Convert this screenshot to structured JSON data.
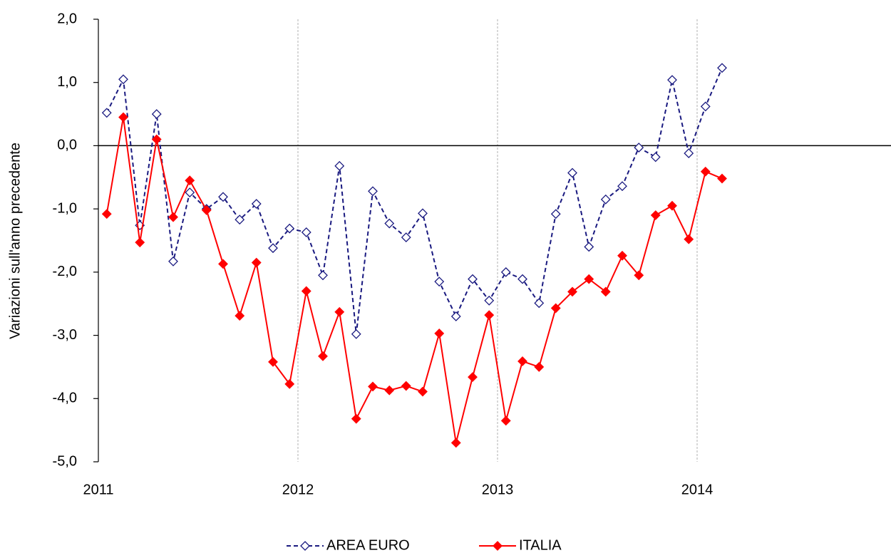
{
  "chart_data": {
    "type": "line",
    "y_label": "Variazioni sull'anno precedente",
    "x": [
      2011.042,
      2011.125,
      2011.208,
      2011.292,
      2011.375,
      2011.458,
      2011.542,
      2011.625,
      2011.708,
      2011.792,
      2011.875,
      2011.958,
      2012.042,
      2012.125,
      2012.208,
      2012.292,
      2012.375,
      2012.458,
      2012.542,
      2012.625,
      2012.708,
      2012.792,
      2012.875,
      2012.958,
      2013.042,
      2013.125,
      2013.208,
      2013.292,
      2013.375,
      2013.458,
      2013.542,
      2013.625,
      2013.708,
      2013.792,
      2013.875,
      2013.958,
      2014.042,
      2014.125
    ],
    "series": [
      {
        "name": "AREA EURO",
        "color": "#1a1a80",
        "dashed": true,
        "marker_filled": false,
        "values": [
          0.52,
          1.05,
          -1.26,
          0.5,
          -1.83,
          -0.74,
          -1.0,
          -0.81,
          -1.17,
          -0.92,
          -1.62,
          -1.31,
          -1.37,
          -2.05,
          -0.32,
          -2.98,
          -0.72,
          -1.23,
          -1.45,
          -1.07,
          -2.15,
          -2.7,
          -2.11,
          -2.45,
          -2.0,
          -2.11,
          -2.49,
          -1.08,
          -0.43,
          -1.6,
          -0.85,
          -0.64,
          -0.03,
          -0.18,
          1.04,
          -0.12,
          0.62,
          1.23
        ]
      },
      {
        "name": "ITALIA",
        "color": "#ff0000",
        "dashed": false,
        "marker_filled": true,
        "values": [
          -1.08,
          0.45,
          -1.53,
          0.1,
          -1.13,
          -0.55,
          -1.02,
          -1.87,
          -2.69,
          -1.85,
          -3.42,
          -3.77,
          -2.3,
          -3.33,
          -2.63,
          -4.32,
          -3.81,
          -3.87,
          -3.8,
          -3.89,
          -2.97,
          -4.7,
          -3.66,
          -2.68,
          -4.35,
          -3.41,
          -3.5,
          -2.57,
          -2.31,
          -2.11,
          -2.31,
          -1.74,
          -2.05,
          -1.1,
          -0.95,
          -1.48,
          -0.41,
          -0.52
        ]
      }
    ],
    "xlim": [
      2011,
      2015
    ],
    "xticks": [
      2011,
      2012,
      2013,
      2014
    ],
    "ylim": [
      -5,
      2
    ],
    "yticks": [
      {
        "value": -5,
        "label": "-5,0"
      },
      {
        "value": -4,
        "label": "-4,0"
      },
      {
        "value": -3,
        "label": "-3,0"
      },
      {
        "value": -2,
        "label": "-2,0"
      },
      {
        "value": -1,
        "label": "-1,0"
      },
      {
        "value": 0,
        "label": "0,0"
      },
      {
        "value": 1,
        "label": "1,0"
      },
      {
        "value": 2,
        "label": "2,0"
      }
    ],
    "grid": "x",
    "legend": "bottom"
  }
}
